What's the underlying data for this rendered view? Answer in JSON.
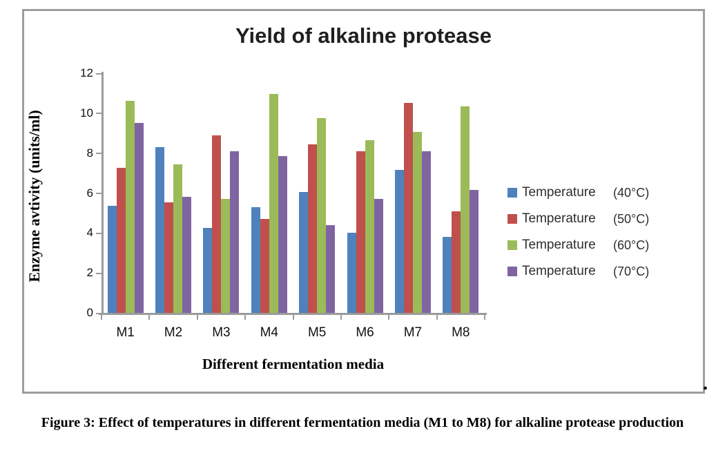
{
  "chart_data": {
    "type": "bar",
    "title": "Yield of alkaline protease",
    "xlabel": "Different fermentation media",
    "ylabel": "Enzyme avtivity (units/ml)",
    "categories": [
      "M1",
      "M2",
      "M3",
      "M4",
      "M5",
      "M6",
      "M7",
      "M8"
    ],
    "series": [
      {
        "name": "Temperature",
        "temp": "(40°C)",
        "color": "#4F81BD",
        "values": [
          5.35,
          8.3,
          4.25,
          5.3,
          6.05,
          4.0,
          7.15,
          3.8
        ]
      },
      {
        "name": "Temperature",
        "temp": "(50°C)",
        "color": "#C0504D",
        "values": [
          7.25,
          5.55,
          8.9,
          4.7,
          8.45,
          8.1,
          10.5,
          5.1
        ]
      },
      {
        "name": "Temperature",
        "temp": "(60°C)",
        "color": "#9BBB59",
        "values": [
          10.6,
          7.45,
          5.7,
          10.95,
          9.75,
          8.65,
          9.05,
          10.35
        ]
      },
      {
        "name": "Temperature",
        "temp": "(70°C)",
        "color": "#8064A2",
        "values": [
          9.5,
          5.8,
          8.1,
          7.85,
          4.4,
          5.7,
          8.1,
          6.15
        ]
      }
    ],
    "ylim": [
      0,
      12
    ],
    "yticks": [
      0,
      2,
      4,
      6,
      8,
      10,
      12
    ],
    "grid": false,
    "legend_position": "right"
  },
  "caption": "Figure 3: Effect of temperatures in different fermentation media (M1 to M8) for alkaline protease production",
  "stray_period": "."
}
